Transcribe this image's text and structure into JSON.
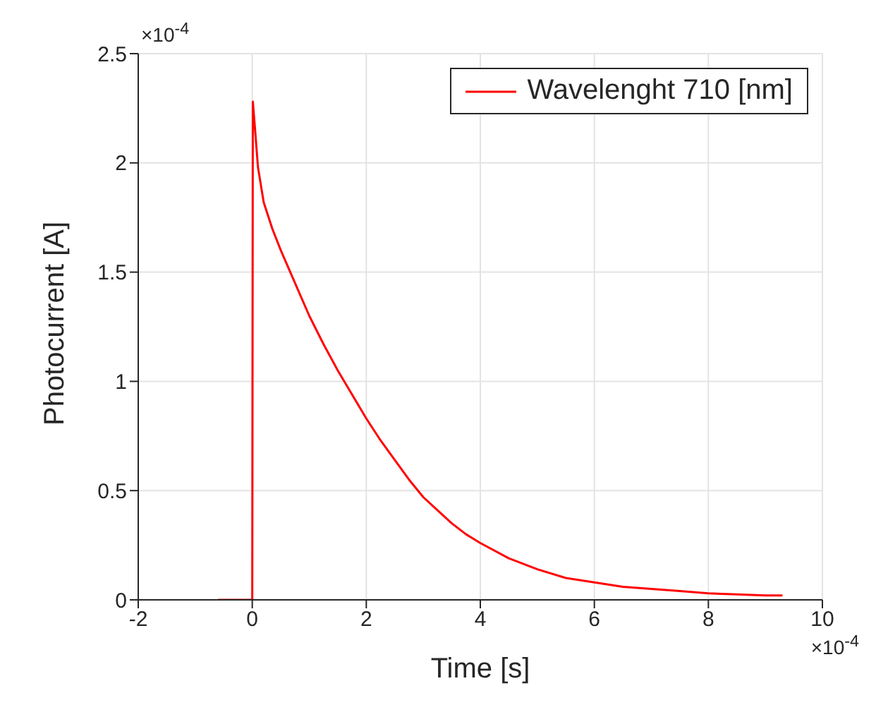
{
  "chart_data": {
    "type": "line",
    "xlabel": "Time [s]",
    "ylabel": "Photocurrent [A]",
    "annotations": [
      "×10$^{-4}$",
      "×10$^{-4}$"
    ],
    "x": [
      -0.6,
      -0.01,
      0,
      0.01,
      0.05,
      0.1,
      0.2,
      0.35,
      0.5,
      0.75,
      1,
      1.25,
      1.5,
      1.75,
      2,
      2.25,
      2.5,
      2.75,
      3,
      3.25,
      3.5,
      3.75,
      4,
      4.5,
      5,
      5.5,
      6,
      6.5,
      7,
      7.5,
      8,
      8.5,
      9,
      9.3
    ],
    "series": [
      {
        "name": "Wavelenght 710 [nm]",
        "color": "#ff0000",
        "values": [
          0,
          0,
          0,
          2.28,
          2.15,
          1.98,
          1.82,
          1.7,
          1.6,
          1.45,
          1.3,
          1.17,
          1.05,
          0.94,
          0.83,
          0.73,
          0.64,
          0.55,
          0.47,
          0.41,
          0.35,
          0.3,
          0.26,
          0.19,
          0.14,
          0.1,
          0.08,
          0.06,
          0.05,
          0.04,
          0.03,
          0.025,
          0.02,
          0.02
        ]
      }
    ],
    "xlim": [
      -2,
      10
    ],
    "xticks": [
      -2,
      0,
      2,
      4,
      6,
      8,
      10
    ],
    "ylim": [
      0,
      2.5
    ],
    "yticks": [
      0,
      0.5,
      1,
      1.5,
      2,
      2.5
    ],
    "grid": true,
    "legend": "top right",
    "marker": "none",
    "line_style": "solid"
  }
}
